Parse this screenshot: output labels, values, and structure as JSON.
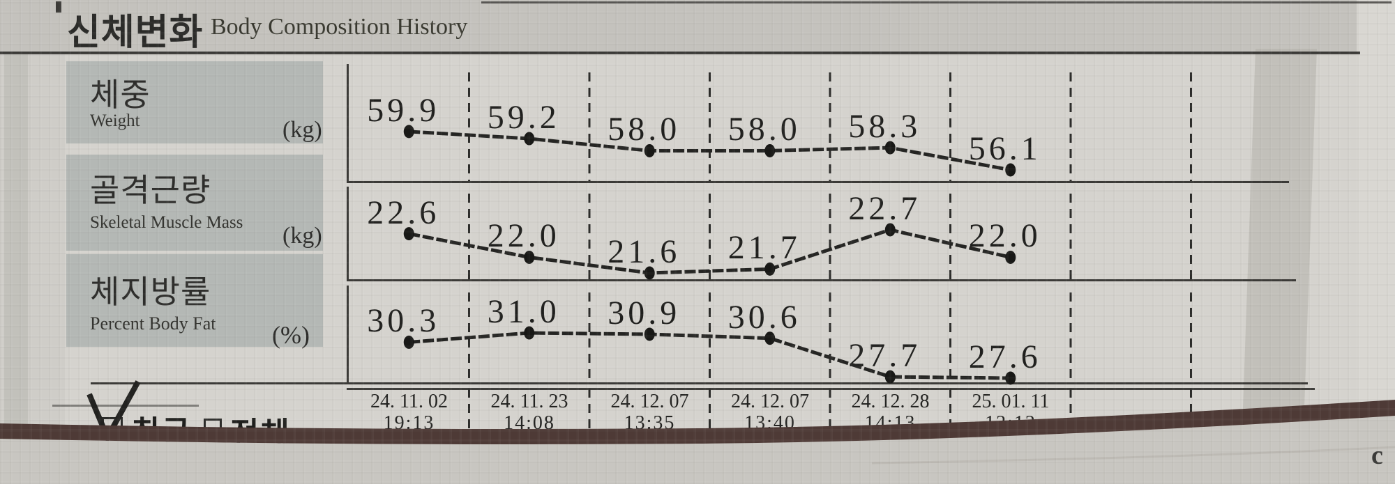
{
  "page": {
    "title_ko": "신체변화",
    "title_en": "Body Composition History",
    "corner_mark": "c"
  },
  "filters": {
    "recent": {
      "label": "최근",
      "checked": true
    },
    "all": {
      "label": "전체",
      "checked": false
    }
  },
  "chart_data": {
    "type": "line",
    "title_ko": "신체변화",
    "title_en": "Body Composition History",
    "total_column_slots": 8,
    "grid": "dashed-vertical-separators",
    "legend": "none",
    "categories_date": [
      "24. 11. 02",
      "24. 11. 23",
      "24. 12. 07",
      "24. 12. 07",
      "24. 12. 28",
      "25. 01. 11"
    ],
    "categories_time": [
      "19:13",
      "14:08",
      "13:35",
      "13:40",
      "14:13",
      "12:12"
    ],
    "series": [
      {
        "name_ko": "체중",
        "name_en": "Weight",
        "unit": "(kg)",
        "values": [
          59.9,
          59.2,
          58.0,
          58.0,
          58.3,
          56.1
        ],
        "labels": [
          "59.9",
          "59.2",
          "58.0",
          "58.0",
          "58.3",
          "56.1"
        ]
      },
      {
        "name_ko": "골격근량",
        "name_en": "Skeletal Muscle Mass",
        "unit": "(kg)",
        "values": [
          22.6,
          22.0,
          21.6,
          21.7,
          22.7,
          22.0
        ],
        "labels": [
          "22.6",
          "22.0",
          "21.6",
          "21.7",
          "22.7",
          "22.0"
        ]
      },
      {
        "name_ko": "체지방률",
        "name_en": "Percent Body Fat",
        "unit": "(%)",
        "values": [
          30.3,
          31.0,
          30.9,
          30.6,
          27.7,
          27.6
        ],
        "labels": [
          "30.3",
          "31.0",
          "30.9",
          "30.6",
          "27.7",
          "27.6"
        ]
      }
    ]
  }
}
